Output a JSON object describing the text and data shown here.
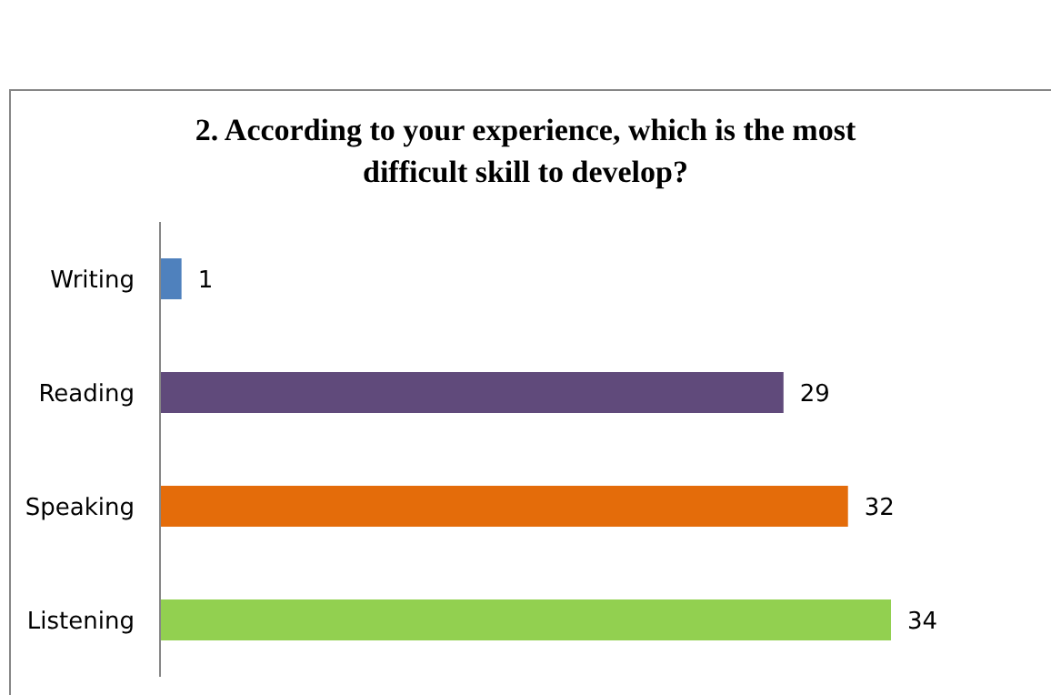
{
  "chart_data": {
    "type": "bar",
    "orientation": "horizontal",
    "title": "2. According to your experience, which is the most difficult skill to develop?",
    "categories": [
      "Writing",
      "Reading",
      "Speaking",
      "Listening"
    ],
    "values": [
      1,
      29,
      32,
      34
    ],
    "colors": [
      "#4f81bd",
      "#604a7b",
      "#e46c0a",
      "#92d050"
    ],
    "data_labels": true
  }
}
